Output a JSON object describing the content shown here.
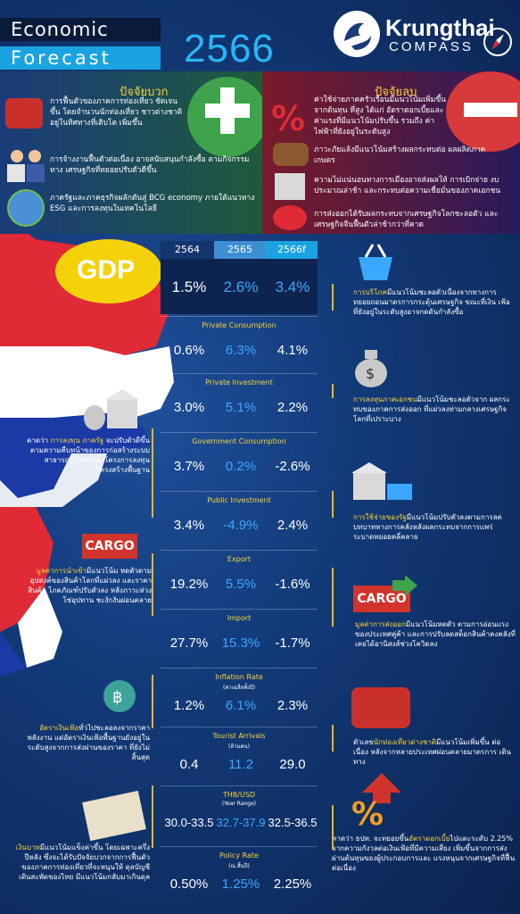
{
  "header": {
    "title_line1": "Economic",
    "title_line2": "Forecast",
    "year": "2566",
    "brand": "Krungthai",
    "brand_sub": "COMPASS"
  },
  "positive": {
    "title": "ปัจจัยบวก",
    "items": [
      "การฟื้นตัวของภาคการท่องเที่ยว ชัดเจนขึ้น โดยจำนวนนักท่องเที่ยว ชาวต่างชาติอยู่ในทิศทางที่เติบโต เพิ่มขึ้น",
      "การจ้างงานฟื้นตัวต่อเนื่อง อาจสนับสนุนกำลังซื้อ ตามกิจกรรมทาง เศรษฐกิจที่ทยอยปรับตัวดีขึ้น",
      "ภาครัฐและภาคธุรกิจผลักดันสู่ BCG economy ภายใต้แนวทาง ESG และการลงทุนในเทคโนโลยี"
    ]
  },
  "negative": {
    "title": "ปัจจัยลบ",
    "items": [
      "ค่าใช้จ่ายภาคครัวเรือนมีแนวโน้มเพิ่มขึ้นจากต้นทุน ที่สูง ได้แก่ อัตราดอกเบี้ยและ ค่าแรงที่มีแนวโน้มปรับขึ้น รวมถึง ค่าไฟฟ้าที่ยังอยู่ในระดับสูง",
      "ภาวะภัยแล้งมีแนวโน้มสร้างผลกระทบต่อ ผลผลิตภาคเกษตร",
      "ความไม่แน่นอนทางการเมืองอาจส่งผลให้ การเบิกจ่าย งบประมาณล่าช้า และกระทบต่อความเชื่อมั่นของภาคเอกชน",
      "การส่งออกได้รับผลกระทบจากเศรษฐกิจโลกชะลอตัว และ เศรษฐกิจจีนฟื้นตัวล่าช้ากว่าที่คาด"
    ]
  },
  "gdp": {
    "label": "GDP",
    "years": [
      "2564",
      "2565",
      "2566f"
    ],
    "values": [
      "1.5%",
      "2.6%",
      "3.4%"
    ]
  },
  "indicators": [
    {
      "name": "Private Consumption",
      "sub": "",
      "values": [
        "0.6%",
        "6.3%",
        "4.1%"
      ]
    },
    {
      "name": "Private Investment",
      "sub": "",
      "values": [
        "3.0%",
        "5.1%",
        "2.2%"
      ]
    },
    {
      "name": "Government Consumption",
      "sub": "",
      "values": [
        "3.7%",
        "0.2%",
        "-2.6%"
      ]
    },
    {
      "name": "Public Investment",
      "sub": "",
      "values": [
        "3.4%",
        "-4.9%",
        "2.4%"
      ]
    },
    {
      "name": "Export",
      "sub": "",
      "values": [
        "19.2%",
        "5.5%",
        "-1.6%"
      ]
    },
    {
      "name": "Import",
      "sub": "",
      "values": [
        "27.7%",
        "15.3%",
        "-1.7%"
      ]
    },
    {
      "name": "Inflation Rate",
      "sub": "(ค่าเฉลี่ยทั้งปี)",
      "values": [
        "1.2%",
        "6.1%",
        "2.3%"
      ]
    },
    {
      "name": "Tourist Arrivals",
      "sub": "(ล้านคน)",
      "values": [
        "0.4",
        "11.2",
        "29.0"
      ]
    },
    {
      "name": "THB/USD",
      "sub": "(Year Range)",
      "values": [
        "30.0-33.5",
        "32.7-37.9",
        "32.5-36.5"
      ]
    },
    {
      "name": "Policy Rate",
      "sub": "(ณ สิ้นปี)",
      "values": [
        "0.50%",
        "1.25%",
        "2.25%"
      ]
    }
  ],
  "notes": {
    "consumption_hl": "การบริโภค",
    "consumption": "มีแนวโน้มชะลอตัวเนื่องจากทางการ ทยอยถอนมาตรการกระตุ้นเศรษฐกิจ ขณะที่เงิน เฟ้อที่ยังอยู่ในระดับสูงอาจกดดันกำลังซื้อ",
    "investment_hl": "การลงทุนภาคเอกชน",
    "investment": "มีแนวโน้มชะลอตัวจาก ผลกระทบของภาคการส่งออก ที่แผ่วลงท่ามกลางเศรษฐกิจโลกที่เปราะบาง",
    "gov_pre": "คาดว่า",
    "gov_hl": "การลงทุน ภาครัฐ",
    "gov": "จะปรับตัวดีขึ้น ตามความคืบหน้าของการก่อสร้างระบบ สาธารณูปโภค และโครงการลงทุน โครงสร้างพื้นฐาน",
    "govspend_hl": "การใช้จ่ายของรัฐ",
    "govspend": "มีแนวโน้มปรับตัวลงตามการลด บทบาททางการคลังหลังผลกระทบจากการแพร่ ระบาดทยอยคลี่คลาย",
    "import_hl": "มูลค่าการนำเข้า",
    "import": "มีแนวโน้ม หดตัวตามอุปสงค์ของสินค้าโลกที่แผ่วลง และราคาสินค้า โภคภัณฑ์ปรับตัวลง หลังภาวะห่วงโซ่อุปทาน ชะงักงันผ่อนคลาย",
    "export_hl": "มูลค่าการส่งออก",
    "export": "มีแนวโน้มหดตัว ตามการอ่อนแรง ของประเทศคู่ค้า และการปรับลดสต็อกสินค้าคงคลังที่ เคยได้อานิสงส์ช่วงโควิดลง",
    "inflation_hl": "อัตราเงินเฟ้อ",
    "inflation": "ทั่วไปชะลอลงจากราคา พลังงาน แต่อัตราเงินเฟ้อพื้นฐานยังอยู่ใน ระดับสูงจากการส่งผ่านของราคา ที่ยังไม่สิ้นสุด",
    "tourism_pre": "ตัวเลข",
    "tourism_hl": "นักท่องเที่ยวต่างชาติ",
    "tourism": "มีแนวโน้มเพิ่มขึ้น ต่อเนื่อง หลังจากหลายประเทศผ่อนคลายมาตรการ เดินทาง",
    "baht_hl": "เงินบาท",
    "baht": "มีแนวโน้มแข็งค่าขึ้น โดยเฉพาะครึ่ง ปีหลัง ซึ่งจะได้รับปัจจัยบวกจากการฟื้นตัว ของภาคการท่องเที่ยวที่จะหนุนให้ ดุลบัญชีเดินสะพัดของไทย มีแนวโน้มกลับมาเกินดุล",
    "rate_pre": "คาดว่า ธปท. จะทยอยขึ้น",
    "rate_hl": "อัตราดอกเบี้ย",
    "rate": "ไปแตะระดับ 2.25% จากความกังวลต่อเงินเฟ้อที่มีความเสี่ยง เพิ่มขึ้นจากการส่งผ่านต้นทุนของผู้ประกอบการและ แรงหนุนจากเศรษฐกิจที่ฟื้นต่อเนื่อง"
  },
  "icons": {
    "cargo": "CARGO"
  },
  "colors": {
    "accent_blue": "#29b6f6",
    "gold": "#f7d43a",
    "positive_green": "#3ea34a",
    "negative_red": "#d73a3a"
  }
}
